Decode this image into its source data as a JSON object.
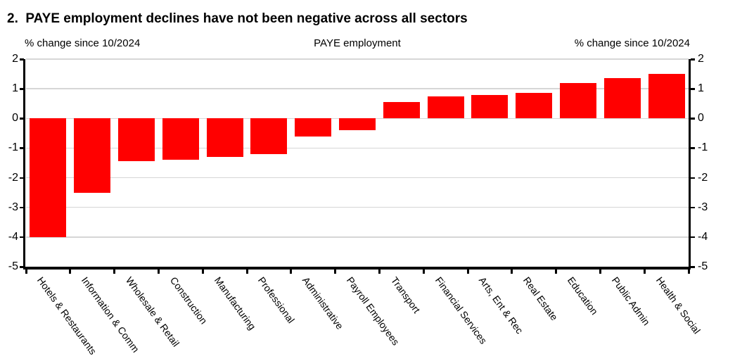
{
  "page": {
    "heading": "2.  PAYE employment declines have not been negative across all sectors"
  },
  "chart_data": {
    "type": "bar",
    "title": "PAYE employment",
    "left_axis_label": "% change since 10/2024",
    "right_axis_label": "% change since 10/2024",
    "ylabel": "% change since 10/2024",
    "ylim": [
      -5,
      2
    ],
    "yticks": [
      2,
      1,
      0,
      -1,
      -2,
      -3,
      -4,
      -5
    ],
    "grid": true,
    "legend": "none",
    "bar_color": "#ff0000",
    "axis_color": "#000000",
    "gridline_color": "#d6d6d6",
    "categories": [
      "Hotels & Restaurants",
      "Information & Comm",
      "Wholesale & Retail",
      "Construction",
      "Manufacturing",
      "Professional",
      "Administrative",
      "Payroll Employees",
      "Transport",
      "Financial Services",
      "Arts, Ent & Rec",
      "Real Estate",
      "Education",
      "Public Admin",
      "Health & Social"
    ],
    "values": [
      -4.0,
      -2.5,
      -1.45,
      -1.4,
      -1.3,
      -1.2,
      -0.6,
      -0.4,
      0.55,
      0.75,
      0.8,
      0.85,
      1.2,
      1.35,
      1.5
    ]
  }
}
